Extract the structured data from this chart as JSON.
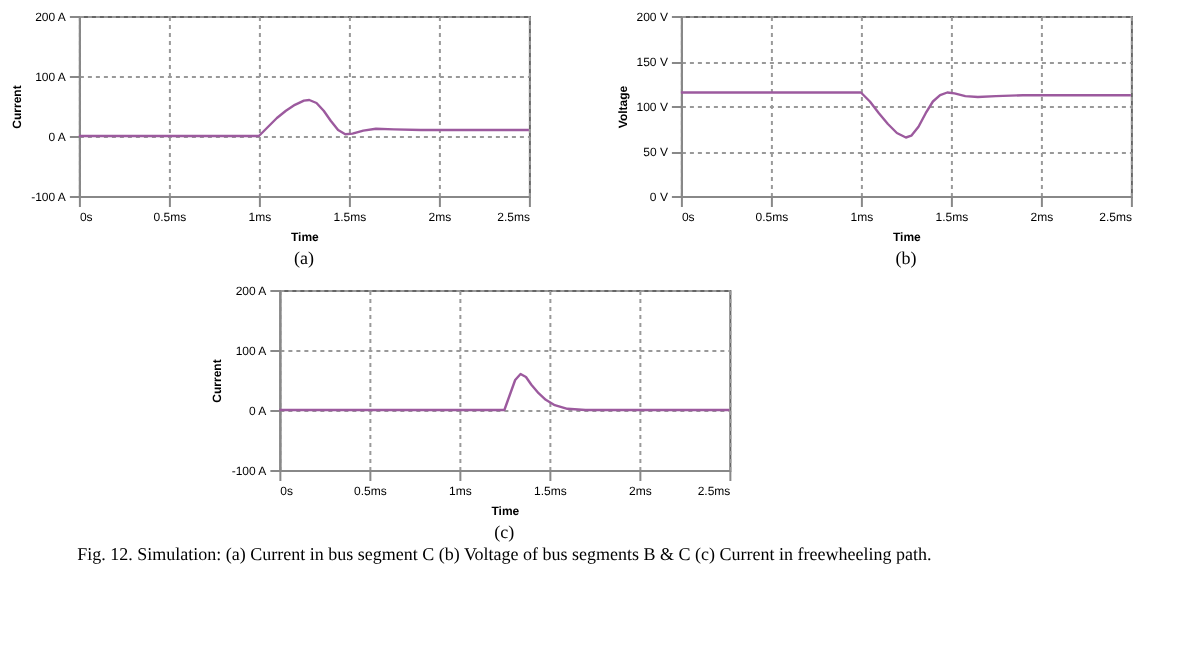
{
  "chart_data": [
    {
      "type": "line",
      "xlabel": "Time",
      "ylabel": "Current",
      "annotations": [
        "(a)"
      ],
      "grid": true,
      "x": [
        0,
        0.5,
        1.0,
        1.05,
        1.1,
        1.15,
        1.2,
        1.25,
        1.28,
        1.32,
        1.36,
        1.4,
        1.44,
        1.48,
        1.52,
        1.58,
        1.65,
        1.75,
        1.9,
        2.1,
        2.3,
        2.5
      ],
      "series": [
        {
          "color": "#9c5a9e",
          "values": [
            0,
            0,
            0,
            15,
            30,
            42,
            52,
            59,
            60,
            55,
            42,
            25,
            10,
            3,
            4,
            9,
            12,
            11,
            10,
            10,
            10,
            10
          ]
        }
      ],
      "xlim": [
        0,
        2.5
      ],
      "xticks": [
        {
          "value": 0,
          "label": "0s"
        },
        {
          "value": 0.5,
          "label": "0.5ms"
        },
        {
          "value": 1,
          "label": "1ms"
        },
        {
          "value": 1.5,
          "label": "1.5ms"
        },
        {
          "value": 2,
          "label": "2ms"
        },
        {
          "value": 2.5,
          "label": "2.5ms"
        }
      ],
      "ylim": [
        -100,
        200
      ],
      "yticks": [
        {
          "value": -100,
          "label": "-100 A"
        },
        {
          "value": 0,
          "label": "0 A"
        },
        {
          "value": 100,
          "label": "100 A"
        },
        {
          "value": 200,
          "label": "200 A"
        }
      ]
    },
    {
      "type": "line",
      "xlabel": "Time",
      "ylabel": "Voltage",
      "annotations": [
        "(b)"
      ],
      "grid": true,
      "x": [
        0,
        0.5,
        1.0,
        1.05,
        1.1,
        1.15,
        1.2,
        1.25,
        1.28,
        1.32,
        1.36,
        1.4,
        1.44,
        1.48,
        1.52,
        1.58,
        1.65,
        1.75,
        1.9,
        2.1,
        2.3,
        2.5
      ],
      "series": [
        {
          "color": "#9c5a9e",
          "values": [
            115,
            115,
            115,
            105,
            92,
            80,
            70,
            65,
            67,
            77,
            92,
            105,
            112,
            115,
            114,
            111,
            110,
            111,
            112,
            112,
            112,
            112
          ]
        }
      ],
      "xlim": [
        0,
        2.5
      ],
      "xticks": [
        {
          "value": 0,
          "label": "0s"
        },
        {
          "value": 0.5,
          "label": "0.5ms"
        },
        {
          "value": 1,
          "label": "1ms"
        },
        {
          "value": 1.5,
          "label": "1.5ms"
        },
        {
          "value": 2,
          "label": "2ms"
        },
        {
          "value": 2.5,
          "label": "2.5ms"
        }
      ],
      "ylim": [
        0,
        200
      ],
      "yticks": [
        {
          "value": 0,
          "label": "0 V"
        },
        {
          "value": 50,
          "label": "50 V"
        },
        {
          "value": 100,
          "label": "100 V"
        },
        {
          "value": 150,
          "label": "150 V"
        },
        {
          "value": 200,
          "label": "200 V"
        }
      ]
    },
    {
      "type": "line",
      "xlabel": "Time",
      "ylabel": "Current",
      "annotations": [
        "(c)",
        "Fig. 12. Simulation: (a) Current in bus segment C (b) Voltage of bus segments B & C (c) Current in freewheeling path."
      ],
      "grid": true,
      "x": [
        0,
        0.5,
        1.0,
        1.25,
        1.28,
        1.31,
        1.34,
        1.37,
        1.4,
        1.44,
        1.48,
        1.53,
        1.6,
        1.7,
        2.0,
        2.5
      ],
      "series": [
        {
          "color": "#9c5a9e",
          "values": [
            0,
            0,
            0,
            0,
            25,
            50,
            60,
            55,
            42,
            28,
            17,
            8,
            2,
            0,
            0,
            0
          ]
        }
      ],
      "xlim": [
        0,
        2.5
      ],
      "xticks": [
        {
          "value": 0,
          "label": "0s"
        },
        {
          "value": 0.5,
          "label": "0.5ms"
        },
        {
          "value": 1,
          "label": "1ms"
        },
        {
          "value": 1.5,
          "label": "1.5ms"
        },
        {
          "value": 2,
          "label": "2ms"
        },
        {
          "value": 2.5,
          "label": "2.5ms"
        }
      ],
      "ylim": [
        -100,
        200
      ],
      "yticks": [
        {
          "value": -100,
          "label": "-100 A"
        },
        {
          "value": 0,
          "label": "0 A"
        },
        {
          "value": 100,
          "label": "100 A"
        },
        {
          "value": 200,
          "label": "200 A"
        }
      ]
    }
  ]
}
